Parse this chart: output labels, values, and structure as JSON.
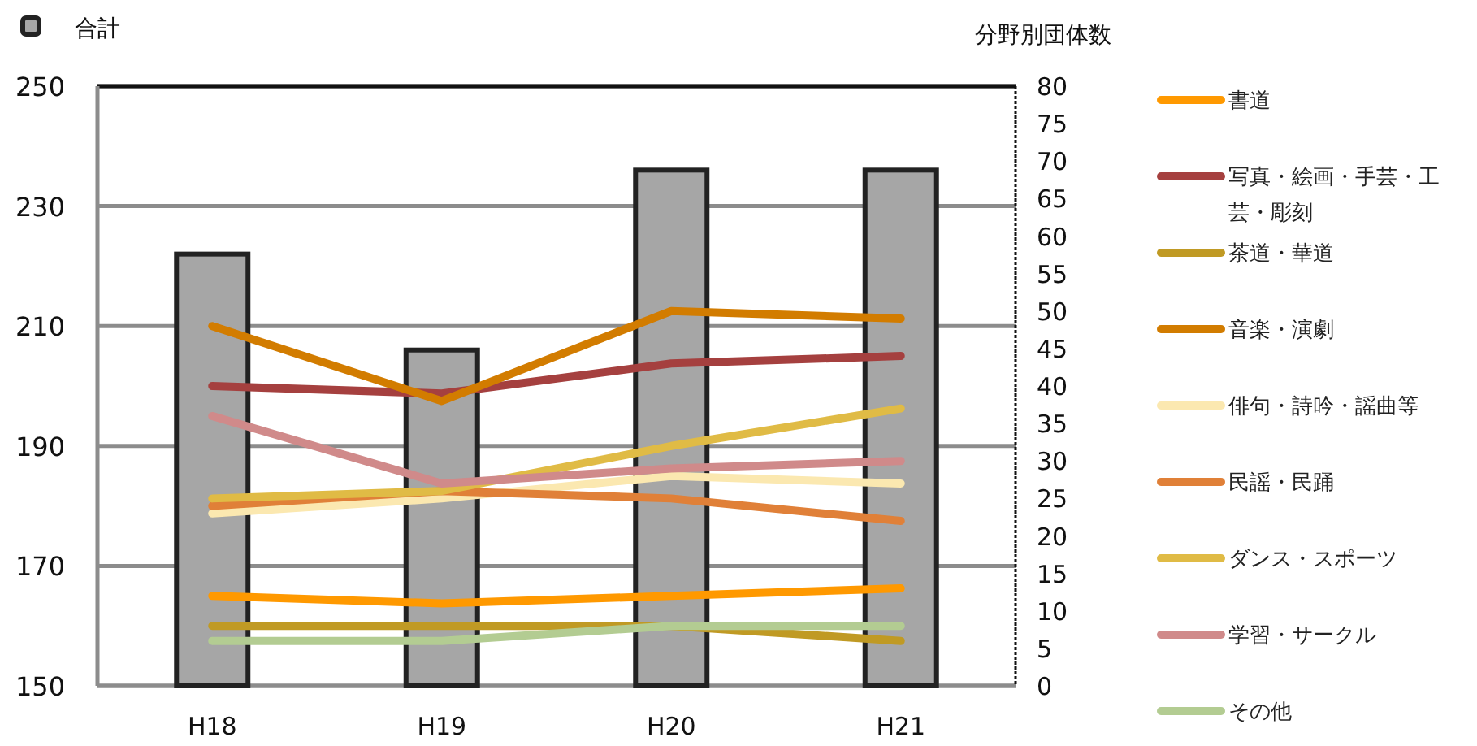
{
  "chart_data": {
    "type": "bar",
    "y2label": "分野別団体数",
    "categories": [
      "H18",
      "H19",
      "H20",
      "H21"
    ],
    "ylim": [
      150,
      250
    ],
    "yticks": [
      150,
      170,
      190,
      210,
      230,
      250
    ],
    "y2lim": [
      0,
      80
    ],
    "y2ticks": [
      0,
      5,
      10,
      15,
      20,
      25,
      30,
      35,
      40,
      45,
      50,
      55,
      60,
      65,
      70,
      75,
      80
    ],
    "grid": "y",
    "legend": "right",
    "series": [
      {
        "name": "合計",
        "axis": "y",
        "color": "#a6a6a6",
        "values": [
          222,
          206,
          236,
          236
        ]
      },
      {
        "name": "書道",
        "type": "line",
        "axis": "y2",
        "color": "#ff9900",
        "values": [
          12,
          11,
          12,
          13
        ]
      },
      {
        "name": "写真・絵画・手芸・工芸・彫刻",
        "type": "line",
        "axis": "y2",
        "color": "#a5403f",
        "values": [
          40,
          39,
          43,
          44
        ]
      },
      {
        "name": "茶道・華道",
        "type": "line",
        "axis": "y2",
        "color": "#c09a24",
        "values": [
          8,
          8,
          8,
          6
        ]
      },
      {
        "name": "音楽・演劇",
        "type": "line",
        "axis": "y2",
        "color": "#d27c00",
        "values": [
          48,
          38,
          50,
          49
        ]
      },
      {
        "name": "俳句・詩吟・謡曲等",
        "type": "line",
        "axis": "y2",
        "color": "#fbe8b0",
        "values": [
          23,
          25,
          28,
          27
        ]
      },
      {
        "name": "民謡・民踊",
        "type": "line",
        "axis": "y2",
        "color": "#e08038",
        "values": [
          24,
          26,
          25,
          22
        ]
      },
      {
        "name": "ダンス・スポーツ",
        "type": "line",
        "axis": "y2",
        "color": "#e0bb45",
        "values": [
          25,
          26,
          32,
          37
        ]
      },
      {
        "name": "学習・サークル",
        "type": "line",
        "axis": "y2",
        "color": "#d08a8a",
        "values": [
          36,
          27,
          29,
          30
        ]
      },
      {
        "name": "その他",
        "type": "line",
        "axis": "y2",
        "color": "#b3cc92",
        "values": [
          6,
          6,
          8,
          8
        ]
      }
    ]
  }
}
